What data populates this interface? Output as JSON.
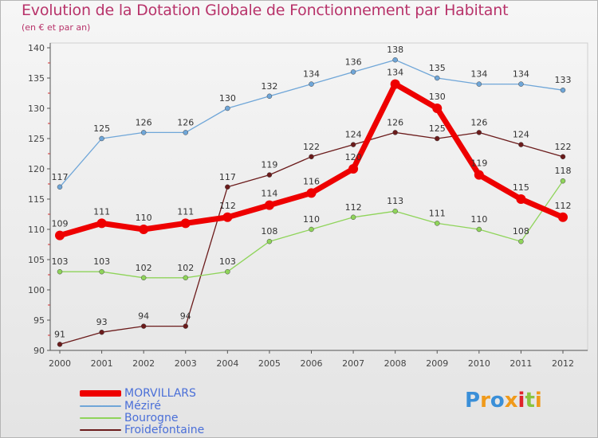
{
  "header": {
    "title": "Evolution de la Dotation Globale de Fonctionnement par Habitant",
    "subtitle": "(en € et par an)"
  },
  "logo": {
    "text": "Proxiti",
    "colors": [
      "#3a8fd8",
      "#f09a1a",
      "#3a8fd8",
      "#f09a1a",
      "#e0242a",
      "#8ac43f",
      "#f09a1a"
    ]
  },
  "chart_data": {
    "type": "line",
    "title": "Evolution de la Dotation Globale de Fonctionnement par Habitant",
    "subtitle": "(en € et par an)",
    "xlabel": "",
    "ylabel": "",
    "ylim": [
      90,
      140
    ],
    "yticks": [
      90,
      95,
      100,
      105,
      110,
      115,
      120,
      125,
      130,
      135,
      140
    ],
    "x": [
      "2000",
      "2001",
      "2002",
      "2003",
      "2004",
      "2005",
      "2006",
      "2007",
      "2008",
      "2009",
      "2010",
      "2011",
      "2012"
    ],
    "grid": false,
    "legend_position": "bottom-left",
    "series": [
      {
        "name": "Froidefontaine",
        "color": "#6b1b1b",
        "values": [
          91,
          93,
          94,
          94,
          117,
          119,
          122,
          124,
          126,
          125,
          126,
          124,
          122
        ]
      },
      {
        "name": "Bourogne",
        "color": "#8fd45a",
        "values": [
          103,
          103,
          102,
          102,
          103,
          108,
          110,
          112,
          113,
          111,
          110,
          108,
          118
        ]
      },
      {
        "name": "Méziré",
        "color": "#6fa6d8",
        "values": [
          117,
          125,
          126,
          126,
          130,
          132,
          134,
          136,
          138,
          135,
          134,
          134,
          133
        ]
      },
      {
        "name": "MORVILLARS",
        "color": "#ee0000",
        "values": [
          109,
          111,
          110,
          111,
          112,
          114,
          116,
          120,
          134,
          130,
          119,
          115,
          112
        ]
      }
    ]
  },
  "legend": {
    "items": [
      {
        "name": "MORVILLARS",
        "color": "#ee0000"
      },
      {
        "name": "Méziré",
        "color": "#6fa6d8"
      },
      {
        "name": "Bourogne",
        "color": "#8fd45a"
      },
      {
        "name": "Froidefontaine",
        "color": "#6b1b1b"
      }
    ]
  }
}
